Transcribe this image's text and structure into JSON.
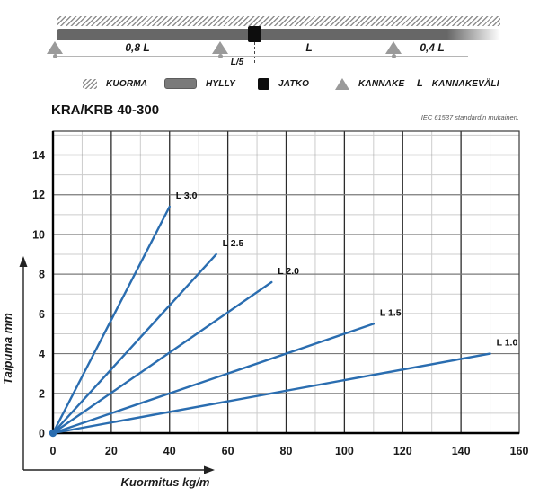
{
  "header": {
    "title": "KRA/KRB 40-300",
    "standard_note": "IEC 61537 standardin mukainen."
  },
  "diagram": {
    "labels": {
      "span_left": "0,8 L",
      "joint_offset": "L/5",
      "span_mid": "L",
      "span_right": "0,4 L"
    },
    "legend": [
      {
        "icon": "hatch-icon",
        "label": "KUORMA"
      },
      {
        "icon": "shelf-bar-icon",
        "label": "HYLLY"
      },
      {
        "icon": "joint-square-icon",
        "label": "JATKO"
      },
      {
        "icon": "support-triangle-icon",
        "label": "KANNAKE"
      },
      {
        "icon": "letter",
        "icon_text": "L",
        "label": "KANNAKEVÄLI"
      }
    ]
  },
  "chart_data": {
    "type": "line",
    "title": "KRA/KRB 40-300",
    "note": "IEC 61537 standardin mukainen.",
    "xlabel": "Kuormitus kg/m",
    "ylabel": "Taipuma mm",
    "xlim": [
      0,
      160
    ],
    "ylim": [
      0,
      15.2
    ],
    "x_ticks": [
      0,
      20,
      40,
      60,
      80,
      100,
      120,
      140,
      160
    ],
    "y_ticks": [
      0,
      2,
      4,
      6,
      8,
      10,
      12,
      14
    ],
    "x_major_step": 20,
    "x_minor_step": 10,
    "y_major_step": 2,
    "y_minor_step": 1,
    "grid": true,
    "legend_position": "inline-labels",
    "series": [
      {
        "name": "L 3.0",
        "x": [
          0,
          40
        ],
        "y": [
          0,
          11.4
        ]
      },
      {
        "name": "L 2.5",
        "x": [
          0,
          56
        ],
        "y": [
          0,
          9.0
        ]
      },
      {
        "name": "L 2.0",
        "x": [
          0,
          75
        ],
        "y": [
          0,
          7.6
        ]
      },
      {
        "name": "L 1.5",
        "x": [
          0,
          110
        ],
        "y": [
          0,
          5.5
        ]
      },
      {
        "name": "L 1.0",
        "x": [
          0,
          150
        ],
        "y": [
          0,
          4.0
        ]
      }
    ],
    "colors": {
      "line": "#2a6db0",
      "grid_minor": "#cccccc",
      "grid_major_v": "#2b2b2b",
      "grid_major_h": "#7a7a7a",
      "border": "#3a3a3a",
      "spine": "#000000",
      "axis_arrow": "#222222"
    }
  }
}
